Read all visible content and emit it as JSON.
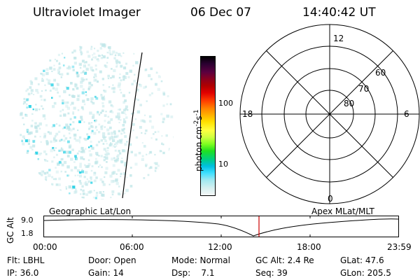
{
  "header": {
    "instrument": "Ultraviolet Imager",
    "date": "06 Dec 07",
    "time": "14:40:42 UT"
  },
  "colorbar": {
    "unit_label": "photon cm",
    "unit_sup1": "-2",
    "unit_mid": "s",
    "unit_sup2": "-1",
    "ticks": [
      "100",
      "10"
    ]
  },
  "polar_plot": {
    "mlt_labels": {
      "top": "12",
      "right": "6",
      "bottom": "0",
      "left": "18"
    },
    "lat_labels": [
      "60",
      "70",
      "80"
    ]
  },
  "timeline": {
    "left_title": "Geographic Lat/Lon",
    "right_title": "Apex MLat/MLT",
    "y_axis_label": "GC Alt",
    "y_ticks": [
      "9.0",
      "1.8"
    ],
    "x_ticks": [
      "00:00",
      "06:00",
      "12:00",
      "18:00",
      "23:59"
    ],
    "marker_color": "#cc0000"
  },
  "status": {
    "row1": {
      "flt": "Flt: LBHL",
      "door": "Door: Open",
      "mode": "Mode: Normal",
      "gc_alt": "GC Alt: 2.4 Re",
      "glat": "GLat:  47.6"
    },
    "row2": {
      "ip": "IP: 36.0",
      "gain": "Gain: 14",
      "dsp": "Dsp:    7.1",
      "seq": "Seq: 39",
      "glon": "GLon: 205.5"
    }
  },
  "colors": {
    "bar_scale": [
      "#000000",
      "#2a0030",
      "#5a0040",
      "#8a0020",
      "#b00000",
      "#e00000",
      "#ff4000",
      "#ff8000",
      "#ffb000",
      "#ffe000",
      "#ffff40",
      "#d0ff40",
      "#80ff20",
      "#20e020",
      "#00d080",
      "#00c0e0",
      "#40e0ff",
      "#a0e8f0",
      "#d8f0f0",
      "#f4f8f8"
    ],
    "speckle_cyan": "#00c8e0",
    "speckle_light": "#bfe6e8"
  }
}
